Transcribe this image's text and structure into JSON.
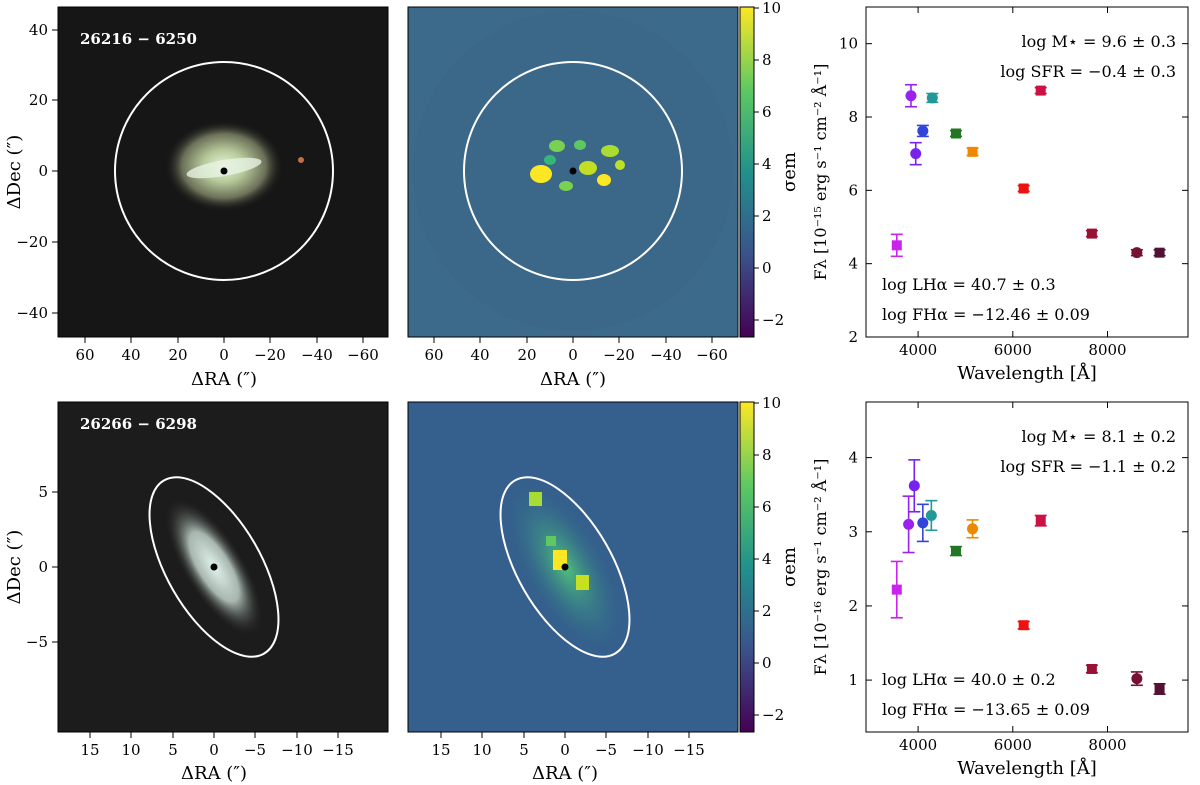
{
  "panels": [
    {
      "id": "26216 − 6250",
      "label": "26216 − 6250",
      "image_xticks": [
        "60",
        "40",
        "20",
        "0",
        "−20",
        "−40",
        "−60"
      ],
      "image_yticks": [
        "40",
        "20",
        "0",
        "−20",
        "−40"
      ],
      "xlabel": "ΔRA  (″)",
      "ylabel": "ΔDec  (″)",
      "colorbar_ticks": [
        "10",
        "8",
        "6",
        "4",
        "2",
        "0",
        "−2"
      ],
      "colorbar_label": "σem",
      "aperture": "circle"
    },
    {
      "id": "26266 − 6298",
      "label": "26266 − 6298",
      "image_xticks": [
        "15",
        "10",
        "5",
        "0",
        "−5",
        "−10",
        "−15"
      ],
      "image_yticks": [
        "5",
        "0",
        "−5"
      ],
      "xlabel": "ΔRA  (″)",
      "ylabel": "ΔDec  (″)",
      "colorbar_ticks": [
        "10",
        "8",
        "6",
        "4",
        "2",
        "0",
        "−2"
      ],
      "colorbar_label": "σem",
      "aperture": "ellipse"
    }
  ],
  "chart_data": [
    {
      "type": "scatter",
      "title": "",
      "xlabel": "Wavelength [Å]",
      "ylabel": "Fλ [10⁻¹⁵ erg s⁻¹ cm⁻² Å⁻¹]",
      "xlim": [
        2900,
        9700
      ],
      "ylim": [
        2,
        11
      ],
      "xticks": [
        4000,
        6000,
        8000
      ],
      "yticks": [
        2,
        4,
        6,
        8,
        10
      ],
      "annotations": {
        "mass": "log M⋆ = 9.6 ± 0.3",
        "sfr": "log SFR = −0.4 ± 0.3",
        "lha": "log LHα = 40.7 ± 0.3",
        "fha": "log FHα = −12.46 ± 0.09"
      },
      "points": [
        {
          "x": 3550,
          "y": 4.5,
          "err": 0.3,
          "color": "#cc22ee",
          "marker": "square"
        },
        {
          "x": 3850,
          "y": 8.58,
          "err": 0.3,
          "color": "#9922ee",
          "marker": "circle"
        },
        {
          "x": 3950,
          "y": 7.0,
          "err": 0.3,
          "color": "#7722ee",
          "marker": "circle"
        },
        {
          "x": 4100,
          "y": 7.62,
          "err": 0.15,
          "color": "#3344dd",
          "marker": "circle"
        },
        {
          "x": 4300,
          "y": 8.52,
          "err": 0.12,
          "color": "#229999",
          "marker": "circle"
        },
        {
          "x": 4800,
          "y": 7.55,
          "err": 0.08,
          "color": "#227722",
          "marker": "square"
        },
        {
          "x": 5150,
          "y": 7.05,
          "err": 0.1,
          "color": "#ee8800",
          "marker": "square"
        },
        {
          "x": 6230,
          "y": 6.05,
          "err": 0.08,
          "color": "#ee1111",
          "marker": "square"
        },
        {
          "x": 6590,
          "y": 8.72,
          "err": 0.08,
          "color": "#cc1144",
          "marker": "square"
        },
        {
          "x": 7670,
          "y": 4.82,
          "err": 0.08,
          "color": "#991133",
          "marker": "square"
        },
        {
          "x": 8620,
          "y": 4.3,
          "err": 0.08,
          "color": "#771133",
          "marker": "circle"
        },
        {
          "x": 9100,
          "y": 4.3,
          "err": 0.08,
          "color": "#551133",
          "marker": "square"
        }
      ]
    },
    {
      "type": "scatter",
      "title": "",
      "xlabel": "Wavelength [Å]",
      "ylabel": "Fλ [10⁻¹⁶ erg s⁻¹ cm⁻² Å⁻¹]",
      "xlim": [
        2900,
        9700
      ],
      "ylim": [
        0.3,
        4.75
      ],
      "xticks": [
        4000,
        6000,
        8000
      ],
      "yticks": [
        1,
        2,
        3,
        4
      ],
      "annotations": {
        "mass": "log M⋆ = 8.1 ± 0.2",
        "sfr": "log SFR = −1.1 ± 0.2",
        "lha": "log LHα = 40.0 ± 0.2",
        "fha": "log FHα = −13.65 ± 0.09"
      },
      "points": [
        {
          "x": 3550,
          "y": 2.22,
          "err": 0.38,
          "color": "#cc22ee",
          "marker": "square"
        },
        {
          "x": 3800,
          "y": 3.1,
          "err": 0.38,
          "color": "#9922ee",
          "marker": "circle"
        },
        {
          "x": 3920,
          "y": 3.62,
          "err": 0.35,
          "color": "#7722ee",
          "marker": "circle"
        },
        {
          "x": 4100,
          "y": 3.12,
          "err": 0.25,
          "color": "#3344dd",
          "marker": "circle"
        },
        {
          "x": 4280,
          "y": 3.22,
          "err": 0.2,
          "color": "#229999",
          "marker": "circle"
        },
        {
          "x": 4800,
          "y": 2.74,
          "err": 0.06,
          "color": "#227722",
          "marker": "square"
        },
        {
          "x": 5150,
          "y": 3.04,
          "err": 0.12,
          "color": "#ee8800",
          "marker": "circle"
        },
        {
          "x": 6230,
          "y": 1.74,
          "err": 0.05,
          "color": "#ee1111",
          "marker": "square"
        },
        {
          "x": 6590,
          "y": 3.15,
          "err": 0.07,
          "color": "#cc1144",
          "marker": "square"
        },
        {
          "x": 7670,
          "y": 1.15,
          "err": 0.05,
          "color": "#991133",
          "marker": "square"
        },
        {
          "x": 8620,
          "y": 1.02,
          "err": 0.09,
          "color": "#771133",
          "marker": "circle"
        },
        {
          "x": 9100,
          "y": 0.88,
          "err": 0.07,
          "color": "#551133",
          "marker": "square"
        }
      ]
    }
  ]
}
